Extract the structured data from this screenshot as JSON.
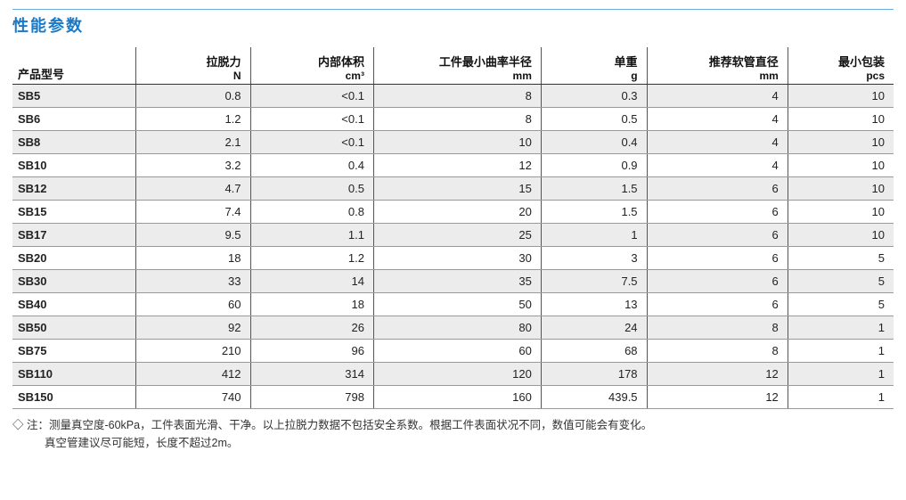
{
  "title": "性能参数",
  "colors": {
    "title_color": "#1b79c6",
    "top_rule_color": "#6aa9e0",
    "header_border_color": "#333333",
    "row_border_color": "#999999",
    "col_border_color": "#555555",
    "zebra_odd_bg": "#ececec",
    "zebra_even_bg": "#ffffff",
    "text_color": "#222222",
    "page_bg": "#ffffff"
  },
  "typography": {
    "title_fontsize_pt": 14,
    "header_fontsize_pt": 10,
    "body_fontsize_pt": 10,
    "font_family": "Microsoft YaHei"
  },
  "table": {
    "type": "table",
    "col_widths_pct": [
      14,
      13,
      14,
      19,
      12,
      16,
      12
    ],
    "columns": [
      {
        "label": "产品型号",
        "unit": "",
        "align": "left"
      },
      {
        "label": "拉脱力",
        "unit": "N",
        "align": "right"
      },
      {
        "label": "内部体积",
        "unit": "cm³",
        "align": "right"
      },
      {
        "label": "工件最小曲率半径",
        "unit": "mm",
        "align": "right"
      },
      {
        "label": "单重",
        "unit": "g",
        "align": "right"
      },
      {
        "label": "推荐软管直径",
        "unit": "mm",
        "align": "right"
      },
      {
        "label": "最小包装",
        "unit": "pcs",
        "align": "right"
      }
    ],
    "rows": [
      [
        "SB5",
        "0.8",
        "<0.1",
        "8",
        "0.3",
        "4",
        "10"
      ],
      [
        "SB6",
        "1.2",
        "<0.1",
        "8",
        "0.5",
        "4",
        "10"
      ],
      [
        "SB8",
        "2.1",
        "<0.1",
        "10",
        "0.4",
        "4",
        "10"
      ],
      [
        "SB10",
        "3.2",
        "0.4",
        "12",
        "0.9",
        "4",
        "10"
      ],
      [
        "SB12",
        "4.7",
        "0.5",
        "15",
        "1.5",
        "6",
        "10"
      ],
      [
        "SB15",
        "7.4",
        "0.8",
        "20",
        "1.5",
        "6",
        "10"
      ],
      [
        "SB17",
        "9.5",
        "1.1",
        "25",
        "1",
        "6",
        "10"
      ],
      [
        "SB20",
        "18",
        "1.2",
        "30",
        "3",
        "6",
        "5"
      ],
      [
        "SB30",
        "33",
        "14",
        "35",
        "7.5",
        "6",
        "5"
      ],
      [
        "SB40",
        "60",
        "18",
        "50",
        "13",
        "6",
        "5"
      ],
      [
        "SB50",
        "92",
        "26",
        "80",
        "24",
        "8",
        "1"
      ],
      [
        "SB75",
        "210",
        "96",
        "60",
        "68",
        "8",
        "1"
      ],
      [
        "SB110",
        "412",
        "314",
        "120",
        "178",
        "12",
        "1"
      ],
      [
        "SB150",
        "740",
        "798",
        "160",
        "439.5",
        "12",
        "1"
      ]
    ]
  },
  "footnote": {
    "marker": "◇ 注：",
    "line1": "测量真空度-60kPa，工件表面光滑、干净。以上拉脱力数据不包括安全系数。根据工件表面状况不同，数值可能会有变化。",
    "line2": "真空管建议尽可能短，长度不超过2m。"
  }
}
